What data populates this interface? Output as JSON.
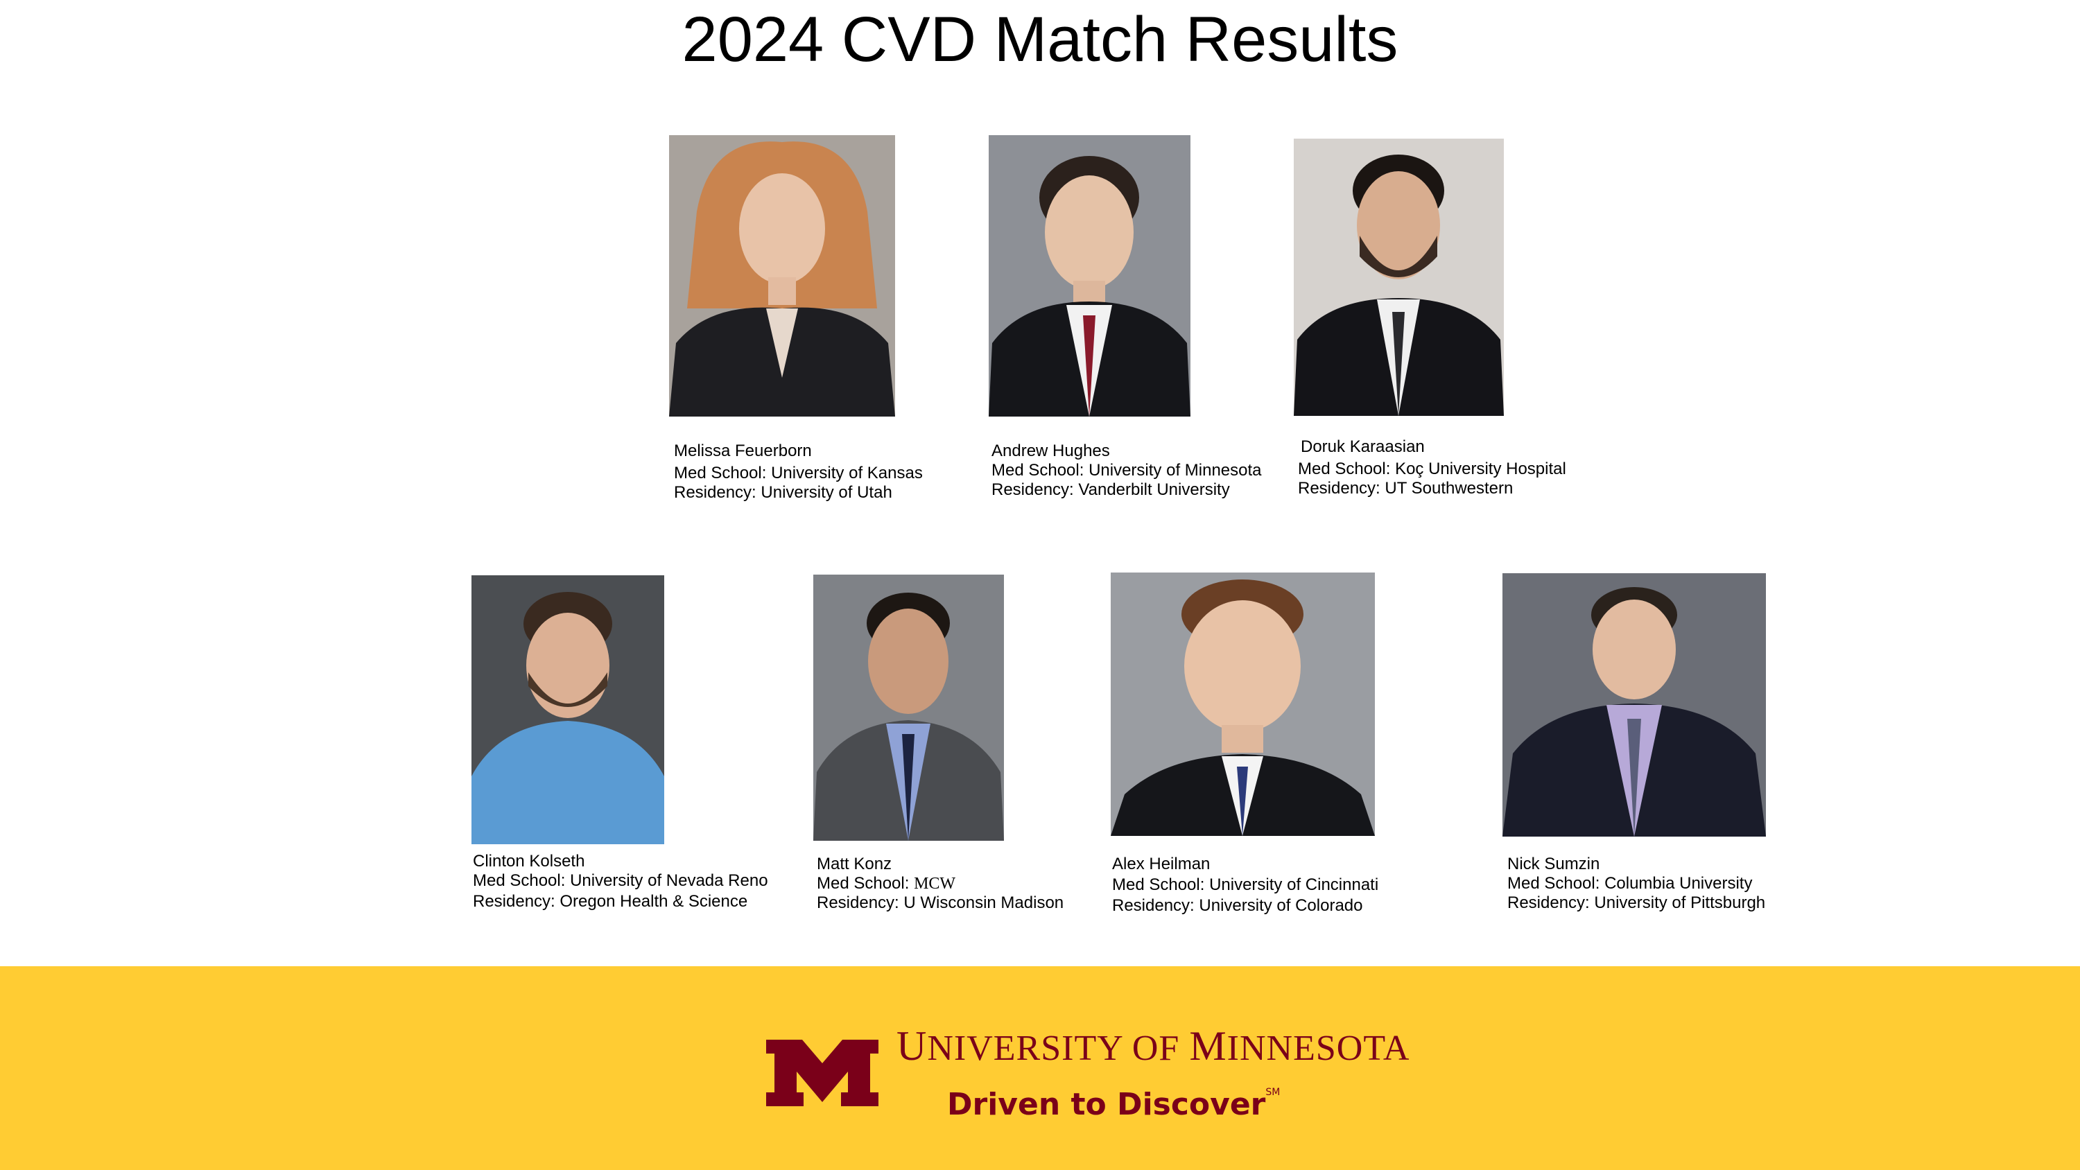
{
  "title": "2024 CVD Match Results",
  "colors": {
    "footer_bg": "#ffcc33",
    "maroon": "#7a0019"
  },
  "residents": [
    {
      "name": "Melissa Feuerborn",
      "med_school": "Med School: University of Kansas",
      "residency": "Residency: University of Utah"
    },
    {
      "name": "Andrew Hughes",
      "med_school": "Med School: University of Minnesota",
      "residency": "Residency: Vanderbilt University"
    },
    {
      "name": "Doruk Karaasian",
      "med_school": "Med School: Koç University Hospital",
      "residency": "Residency: UT Southwestern"
    },
    {
      "name": "Clinton Kolseth",
      "med_school": "Med School: University of Nevada Reno",
      "residency": "Residency: Oregon Health & Science"
    },
    {
      "name": "Matt Konz",
      "med_school_label": "Med School: ",
      "med_school_value": "MCW",
      "residency": "Residency: U Wisconsin Madison"
    },
    {
      "name": "Alex Heilman",
      "med_school": "Med School: University of Cincinnati",
      "residency": "Residency: University of Colorado"
    },
    {
      "name": "Nick Sumzin",
      "med_school": "Med School: Columbia University",
      "residency": "Residency: University of Pittsburgh"
    }
  ],
  "footer": {
    "logo": "university-of-minnesota-block-m",
    "univ_U": "U",
    "univ_rest1": "NIVERSITY OF ",
    "univ_M": "M",
    "univ_rest2": "INNESOTA",
    "tagline": "Driven to Discover",
    "tagline_mark": "SM"
  }
}
